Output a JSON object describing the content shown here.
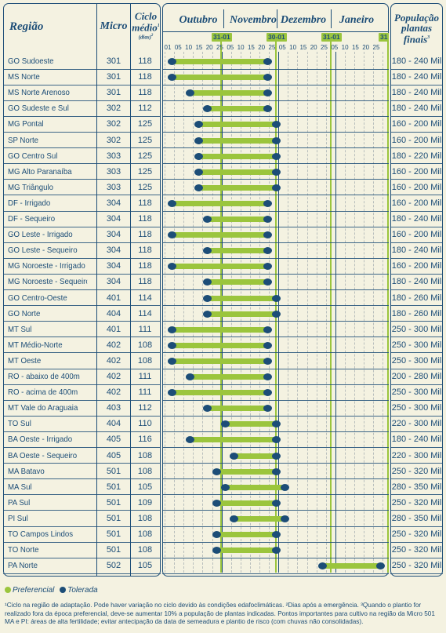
{
  "headers": {
    "region": "Região",
    "micro": "Micro",
    "ciclo_top": "Ciclo",
    "ciclo_mid": "médio",
    "ciclo_sup": "1",
    "ciclo_unit": "(dias)",
    "ciclo_unit_sup": "2",
    "pop_1": "População",
    "pop_2": "plantas",
    "pop_3": "finais",
    "pop_sup": "3"
  },
  "months": [
    "Outubro",
    "Novembro",
    "Dezembro",
    "Janeiro"
  ],
  "markers": [
    "31-01",
    "30-01",
    "31-01",
    "31"
  ],
  "day_labels": [
    "01",
    "05",
    "10",
    "15",
    "20",
    "25",
    "05",
    "10",
    "15",
    "20",
    "25",
    "05",
    "10",
    "15",
    "20",
    "25",
    "05",
    "10",
    "15",
    "20",
    "25"
  ],
  "rows": [
    {
      "region": "GO Sudoeste",
      "micro": "301",
      "ciclo": "118",
      "pop": "180 - 240 Mil",
      "start": 0,
      "end": 11
    },
    {
      "region": "MS Norte",
      "micro": "301",
      "ciclo": "118",
      "pop": "180 - 240 Mil",
      "start": 0,
      "end": 11
    },
    {
      "region": "MS Norte Arenoso",
      "micro": "301",
      "ciclo": "118",
      "pop": "180 - 240 Mil",
      "start": 2,
      "end": 11
    },
    {
      "region": "GO Sudeste e Sul",
      "micro": "302",
      "ciclo": "112",
      "pop": "180 - 240 Mil",
      "start": 4,
      "end": 11
    },
    {
      "region": "MG Pontal",
      "micro": "302",
      "ciclo": "125",
      "pop": "160 - 200 Mil",
      "start": 3,
      "end": 12
    },
    {
      "region": "SP Norte",
      "micro": "302",
      "ciclo": "125",
      "pop": "160 - 200 Mil",
      "start": 3,
      "end": 12
    },
    {
      "region": "GO Centro Sul",
      "micro": "303",
      "ciclo": "125",
      "pop": "180 - 220 Mil",
      "start": 3,
      "end": 12
    },
    {
      "region": "MG Alto Paranaíba",
      "micro": "303",
      "ciclo": "125",
      "pop": "160 - 200 Mil",
      "start": 3,
      "end": 12
    },
    {
      "region": "MG Triângulo",
      "micro": "303",
      "ciclo": "125",
      "pop": "160 - 200 Mil",
      "start": 3,
      "end": 12
    },
    {
      "region": "DF - Irrigado",
      "micro": "304",
      "ciclo": "118",
      "pop": "160 - 200 Mil",
      "start": 0,
      "end": 11
    },
    {
      "region": "DF - Sequeiro",
      "micro": "304",
      "ciclo": "118",
      "pop": "180 - 240 Mil",
      "start": 4,
      "end": 11
    },
    {
      "region": "GO Leste - Irrigado",
      "micro": "304",
      "ciclo": "118",
      "pop": "160 - 200 Mil",
      "start": 0,
      "end": 11
    },
    {
      "region": "GO Leste - Sequeiro",
      "micro": "304",
      "ciclo": "118",
      "pop": "180 - 240 Mil",
      "start": 4,
      "end": 11
    },
    {
      "region": "MG Noroeste - Irrigado",
      "micro": "304",
      "ciclo": "118",
      "pop": "160 - 200 Mil",
      "start": 0,
      "end": 11
    },
    {
      "region": "MG Noroeste - Sequeiro",
      "micro": "304",
      "ciclo": "118",
      "pop": "180 - 240 Mil",
      "start": 4,
      "end": 11
    },
    {
      "region": "GO Centro-Oeste",
      "micro": "401",
      "ciclo": "114",
      "pop": "180 - 260 Mil",
      "start": 4,
      "end": 12
    },
    {
      "region": "GO Norte",
      "micro": "404",
      "ciclo": "114",
      "pop": "180 - 260 Mil",
      "start": 4,
      "end": 12
    },
    {
      "region": "MT Sul",
      "micro": "401",
      "ciclo": "111",
      "pop": "250 - 300 Mil",
      "start": 0,
      "end": 11
    },
    {
      "region": "MT Médio-Norte",
      "micro": "402",
      "ciclo": "108",
      "pop": "250 - 300 Mil",
      "start": 0,
      "end": 11
    },
    {
      "region": "MT Oeste",
      "micro": "402",
      "ciclo": "108",
      "pop": "250 - 300 Mil",
      "start": 0,
      "end": 11
    },
    {
      "region": "RO - abaixo de 400m",
      "micro": "402",
      "ciclo": "111",
      "pop": "200 - 280 Mil",
      "start": 2,
      "end": 11
    },
    {
      "region": "RO - acima de 400m",
      "micro": "402",
      "ciclo": "111",
      "pop": "250 - 300 Mil",
      "start": 0,
      "end": 11
    },
    {
      "region": "MT Vale do Araguaia",
      "micro": "403",
      "ciclo": "112",
      "pop": "250 - 300 Mil",
      "start": 4,
      "end": 11
    },
    {
      "region": "TO Sul",
      "micro": "404",
      "ciclo": "110",
      "pop": "220 - 300 Mil",
      "start": 6,
      "end": 12
    },
    {
      "region": "BA Oeste - Irrigado",
      "micro": "405",
      "ciclo": "116",
      "pop": "180 - 240 Mil",
      "start": 2,
      "end": 12
    },
    {
      "region": "BA Oeste - Sequeiro",
      "micro": "405",
      "ciclo": "108",
      "pop": "220 - 300 Mil",
      "start": 7,
      "end": 12
    },
    {
      "region": "MA Batavo",
      "micro": "501",
      "ciclo": "108",
      "pop": "250 - 320 Mil",
      "start": 5,
      "end": 12
    },
    {
      "region": "MA Sul",
      "micro": "501",
      "ciclo": "105",
      "pop": "280 - 350 Mil",
      "start": 6,
      "end": 13
    },
    {
      "region": "PA Sul",
      "micro": "501",
      "ciclo": "109",
      "pop": "250 - 320 Mil",
      "start": 5,
      "end": 12
    },
    {
      "region": "PI Sul",
      "micro": "501",
      "ciclo": "108",
      "pop": "280 - 350 Mil",
      "start": 7,
      "end": 13
    },
    {
      "region": "TO Campos Lindos",
      "micro": "501",
      "ciclo": "108",
      "pop": "250 - 320 Mil",
      "start": 5,
      "end": 12
    },
    {
      "region": "TO Norte",
      "micro": "501",
      "ciclo": "108",
      "pop": "250 - 320 Mil",
      "start": 5,
      "end": 12
    },
    {
      "region": "PA Norte",
      "micro": "502",
      "ciclo": "105",
      "pop": "250 - 320 Mil",
      "start": 17,
      "end": 24
    }
  ],
  "legend": {
    "preferencial": "Preferencial",
    "tolerada": "Tolerada",
    "green": "#9bc53d",
    "blue": "#1c4d77"
  },
  "footnote": "¹Ciclo na região de adaptação. Pode haver variação no ciclo devido às condições edafoclimáticas. ²Dias após a emergência. ³Quando o plantio for realizado fora da época preferencial, deve-se aumentar 10% a população de plantas indicadas. Pontos importantes para cultivo na região da Micro 501 MA e PI: áreas de alta fertilidade; evitar antecipação da data de semeadura e plantio de risco (com chuvas não consolidadas)."
}
